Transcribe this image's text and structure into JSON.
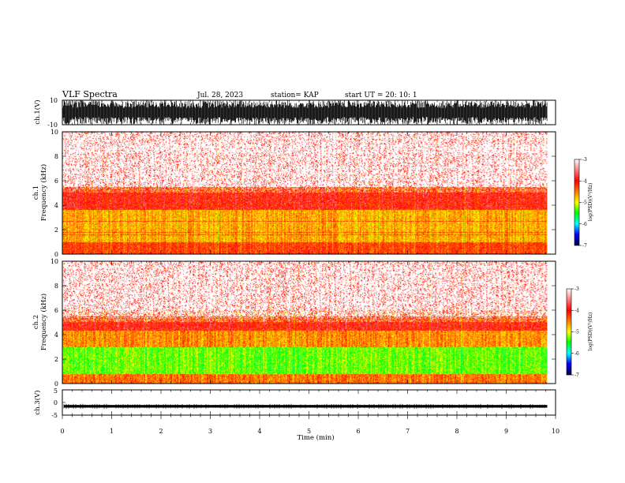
{
  "header": {
    "title": "VLF Spectra",
    "date": "Jul. 28, 2023",
    "station": "station= KAP",
    "start": "start UT =  20: 10: 1"
  },
  "chart_data": [
    {
      "type": "line",
      "name": "ch1-waveform",
      "ylabel": "ch.1(V)",
      "ylim": [
        -10,
        10
      ],
      "yticks": [
        "10",
        "-10"
      ],
      "xlim": [
        0,
        10
      ],
      "note": "dense black waveform, amplitude near saturation, ends at 9.83 min"
    },
    {
      "type": "heatmap",
      "name": "ch1-spectrogram",
      "ylabel": "ch.1\nFrequency (kHz)",
      "ylim": [
        0,
        10
      ],
      "yticks": [
        "0",
        "2",
        "4",
        "6",
        "8",
        "10"
      ],
      "xlim": [
        0,
        10
      ],
      "data_end_min": 9.83,
      "colorbar": {
        "label": "log(PSD)(V²/Hz)",
        "range": [
          -7,
          -3
        ],
        "ticks": [
          "-3",
          "-4",
          "-5",
          "-6",
          "-7"
        ]
      },
      "bands_khz": [
        {
          "from": 0.0,
          "to": 1.0,
          "level": -4.0,
          "desc": "red with many horizontal lines"
        },
        {
          "from": 1.0,
          "to": 3.6,
          "level": -4.4,
          "desc": "yellow / orange"
        },
        {
          "from": 3.6,
          "to": 5.5,
          "level": -3.8,
          "desc": "red"
        },
        {
          "from": 5.5,
          "to": 10.0,
          "level": -3.3,
          "desc": "speckled light red / white"
        }
      ]
    },
    {
      "type": "heatmap",
      "name": "ch2-spectrogram",
      "ylabel": "ch.2\nFrequency (kHz)",
      "ylim": [
        0,
        10
      ],
      "yticks": [
        "0",
        "2",
        "4",
        "6",
        "8",
        "10"
      ],
      "xlim": [
        0,
        10
      ],
      "data_end_min": 9.83,
      "colorbar": {
        "label": "log(PSD)(V²/Hz)",
        "range": [
          -7,
          -3
        ],
        "ticks": [
          "-3",
          "-4",
          "-5",
          "-6",
          "-7"
        ]
      },
      "bands_khz": [
        {
          "from": 0.0,
          "to": 0.8,
          "level": -4.2,
          "desc": "orange / yellow"
        },
        {
          "from": 0.8,
          "to": 3.0,
          "level": -5.0,
          "desc": "green with yellow lines"
        },
        {
          "from": 3.0,
          "to": 4.3,
          "level": -4.3,
          "desc": "yellow / orange"
        },
        {
          "from": 4.3,
          "to": 6.0,
          "level": -3.8,
          "desc": "red"
        },
        {
          "from": 6.0,
          "to": 10.0,
          "level": -3.3,
          "desc": "speckled light red / white"
        }
      ]
    },
    {
      "type": "line",
      "name": "ch3-waveform",
      "ylabel": "ch.3(V)",
      "ylim": [
        -5,
        5
      ],
      "yticks": [
        "5",
        "0",
        "-5"
      ],
      "xlim": [
        0,
        10
      ],
      "band": [
        -2,
        -1
      ],
      "note": "thick black band around -1.5 V"
    }
  ],
  "x_axis": {
    "label": "Time (min)",
    "range": [
      0,
      10
    ],
    "ticks": [
      "0",
      "1",
      "2",
      "3",
      "4",
      "5",
      "6",
      "7",
      "8",
      "9",
      "10"
    ]
  },
  "colors": {
    "white": "#ffffff",
    "red": "#ff0000",
    "yellow": "#ffff00",
    "green": "#00ff00",
    "cyan": "#00ffff",
    "blue": "#0000ff",
    "navy": "#000080"
  }
}
